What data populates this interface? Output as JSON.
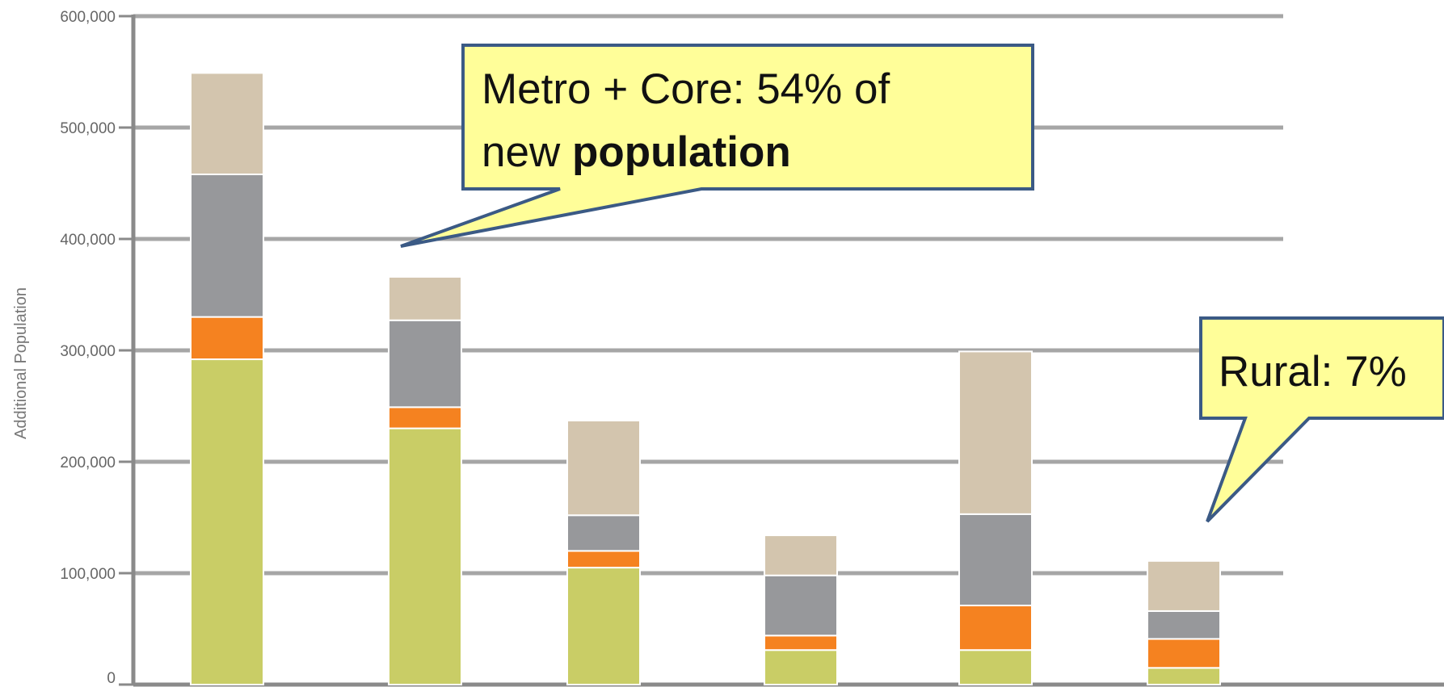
{
  "chart_data": {
    "type": "bar",
    "stacked": true,
    "title": "",
    "xlabel": "",
    "ylabel": "Additional Population",
    "ylim": [
      0,
      600000
    ],
    "yticks": [
      {
        "value": 0,
        "label": "0"
      },
      {
        "value": 100000,
        "label": "100,000"
      },
      {
        "value": 200000,
        "label": "200,000"
      },
      {
        "value": 300000,
        "label": "300,000"
      },
      {
        "value": 400000,
        "label": "400,000"
      },
      {
        "value": 500000,
        "label": "500,000"
      },
      {
        "value": 600000,
        "label": "600,000"
      }
    ],
    "grid": true,
    "categories": [
      "",
      "",
      "",
      "",
      "",
      ""
    ],
    "series": [
      {
        "color": "#c9cd66",
        "values": [
          292000,
          230000,
          105000,
          31000,
          31000,
          15000
        ]
      },
      {
        "color": "#f58220",
        "values": [
          38000,
          19000,
          15000,
          13000,
          40000,
          26000
        ]
      },
      {
        "color": "#97989b",
        "values": [
          128000,
          78000,
          32000,
          54000,
          82000,
          25000
        ]
      },
      {
        "color": "#d3c5ae",
        "values": [
          91000,
          39000,
          85000,
          36000,
          146000,
          45000
        ]
      }
    ]
  },
  "callouts": [
    {
      "line1": "Metro + Core: 54% of",
      "line2_prefix": "new ",
      "line2_bold": "population"
    },
    {
      "line1": "Rural: 7%"
    }
  ],
  "colors": {
    "callout_fill": "#fffe99",
    "callout_border": "#3b5a85",
    "grid": "#a6a6a6",
    "axis": "#8a8a8a"
  }
}
